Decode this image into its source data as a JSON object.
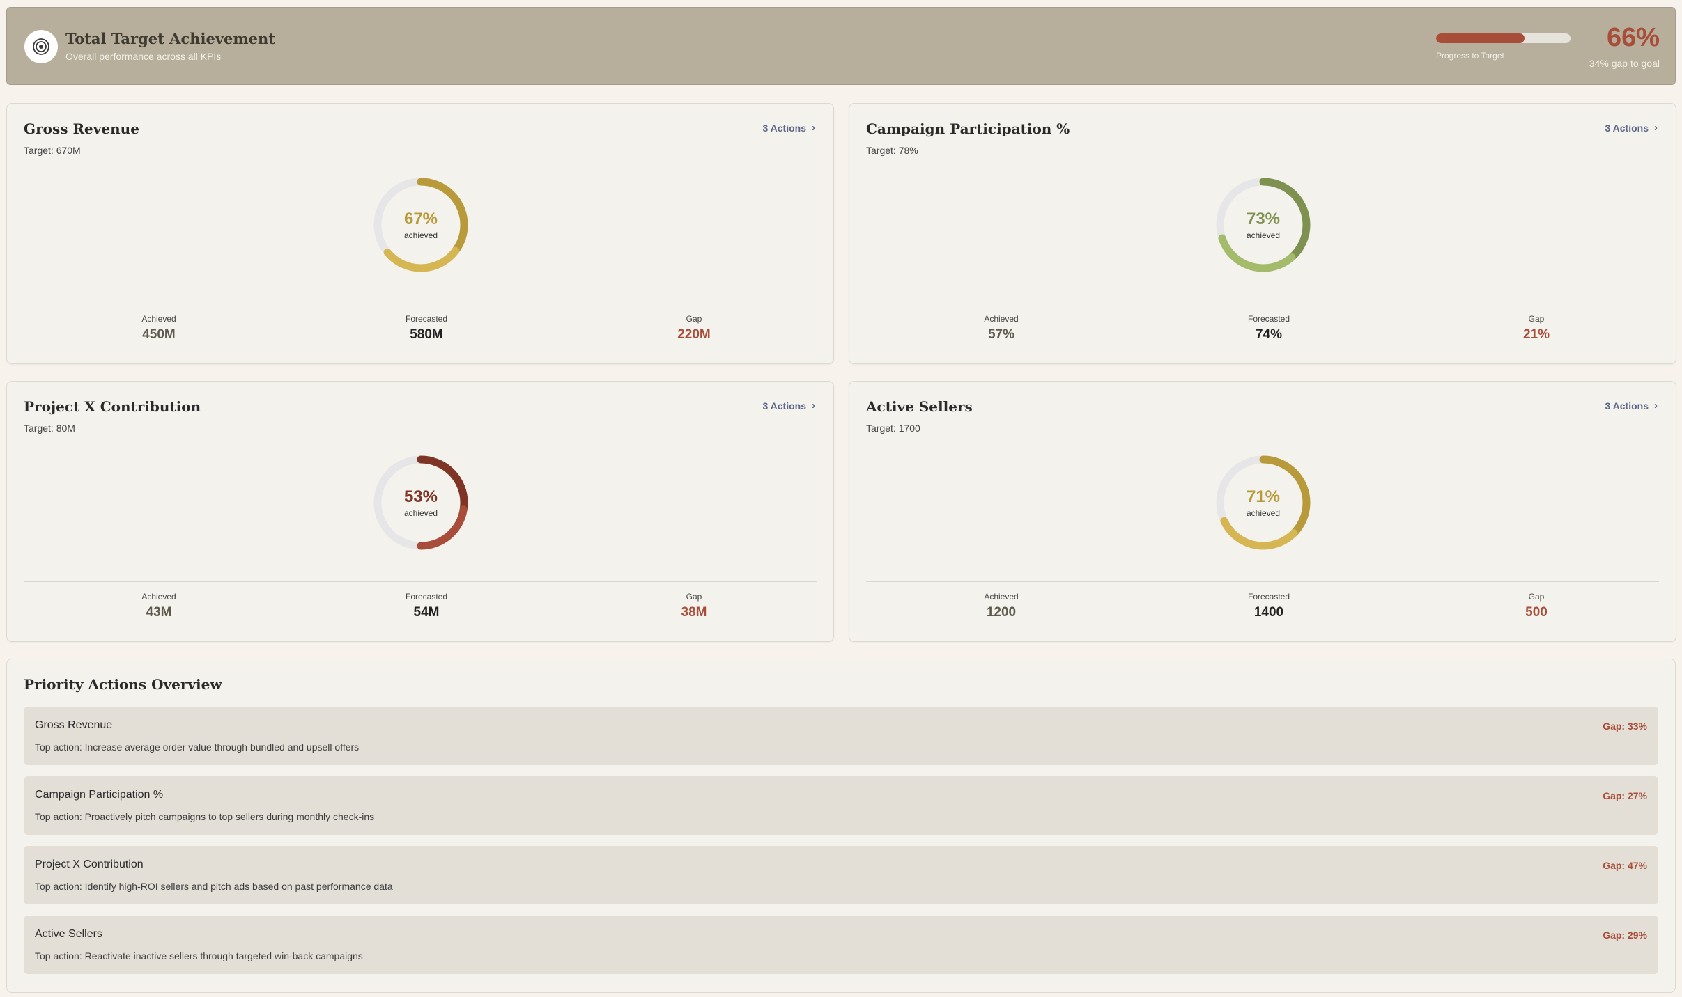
{
  "header": {
    "title": "Total Target Achievement",
    "subtitle": "Overall performance across all KPIs",
    "progress_label": "Progress to Target",
    "progress": 0.66,
    "percent": "66%",
    "gap_text": "34% gap to goal",
    "accent_color": "#a84d39",
    "icon": "target-icon"
  },
  "kpis": [
    {
      "title": "Gross Revenue",
      "target": "Target: 670M",
      "actions": "3 Actions",
      "percent": "67%",
      "achieved_fraction": 0.67,
      "sub": "achieved",
      "color": "#b99a3a",
      "color_light": "#d6b653",
      "stats": [
        {
          "label": "Achieved",
          "value": "450M"
        },
        {
          "label": "Forecasted",
          "value": "580M"
        },
        {
          "label": "Gap",
          "value": "220M"
        }
      ]
    },
    {
      "title": "Campaign Participation %",
      "target": "Target: 78%",
      "actions": "3 Actions",
      "percent": "73%",
      "achieved_fraction": 0.73,
      "sub": "achieved",
      "color": "#7f9150",
      "color_light": "#a4bb6c",
      "stats": [
        {
          "label": "Achieved",
          "value": "57%"
        },
        {
          "label": "Forecasted",
          "value": "74%"
        },
        {
          "label": "Gap",
          "value": "21%"
        }
      ]
    },
    {
      "title": "Project X Contribution",
      "target": "Target: 80M",
      "actions": "3 Actions",
      "percent": "53%",
      "achieved_fraction": 0.53,
      "sub": "achieved",
      "color": "#7f3526",
      "color_light": "#a84d39",
      "stats": [
        {
          "label": "Achieved",
          "value": "43M"
        },
        {
          "label": "Forecasted",
          "value": "54M"
        },
        {
          "label": "Gap",
          "value": "38M"
        }
      ]
    },
    {
      "title": "Active Sellers",
      "target": "Target: 1700",
      "actions": "3 Actions",
      "percent": "71%",
      "achieved_fraction": 0.71,
      "sub": "achieved",
      "color": "#b99a3a",
      "color_light": "#d6b653",
      "stats": [
        {
          "label": "Achieved",
          "value": "1200"
        },
        {
          "label": "Forecasted",
          "value": "1400"
        },
        {
          "label": "Gap",
          "value": "500"
        }
      ]
    }
  ],
  "priority": {
    "title": "Priority Actions Overview",
    "items": [
      {
        "name": "Gross Revenue",
        "desc": "Top action: Increase average order value through bundled and upsell offers",
        "gap": "Gap: 33%"
      },
      {
        "name": "Campaign Participation %",
        "desc": "Top action: Proactively pitch campaigns to top sellers during monthly check-ins",
        "gap": "Gap: 27%"
      },
      {
        "name": "Project X Contribution",
        "desc": "Top action: Identify high-ROI sellers and pitch ads based on past performance data",
        "gap": "Gap: 47%"
      },
      {
        "name": "Active Sellers",
        "desc": "Top action: Reactivate inactive sellers through targeted win-back campaigns",
        "gap": "Gap: 29%"
      }
    ]
  },
  "colors": {
    "achieved_value": "#5e5a4e",
    "forecast_value": "#222222",
    "gap_value": "#a84d39",
    "donut_track": "#e6e6e8"
  }
}
